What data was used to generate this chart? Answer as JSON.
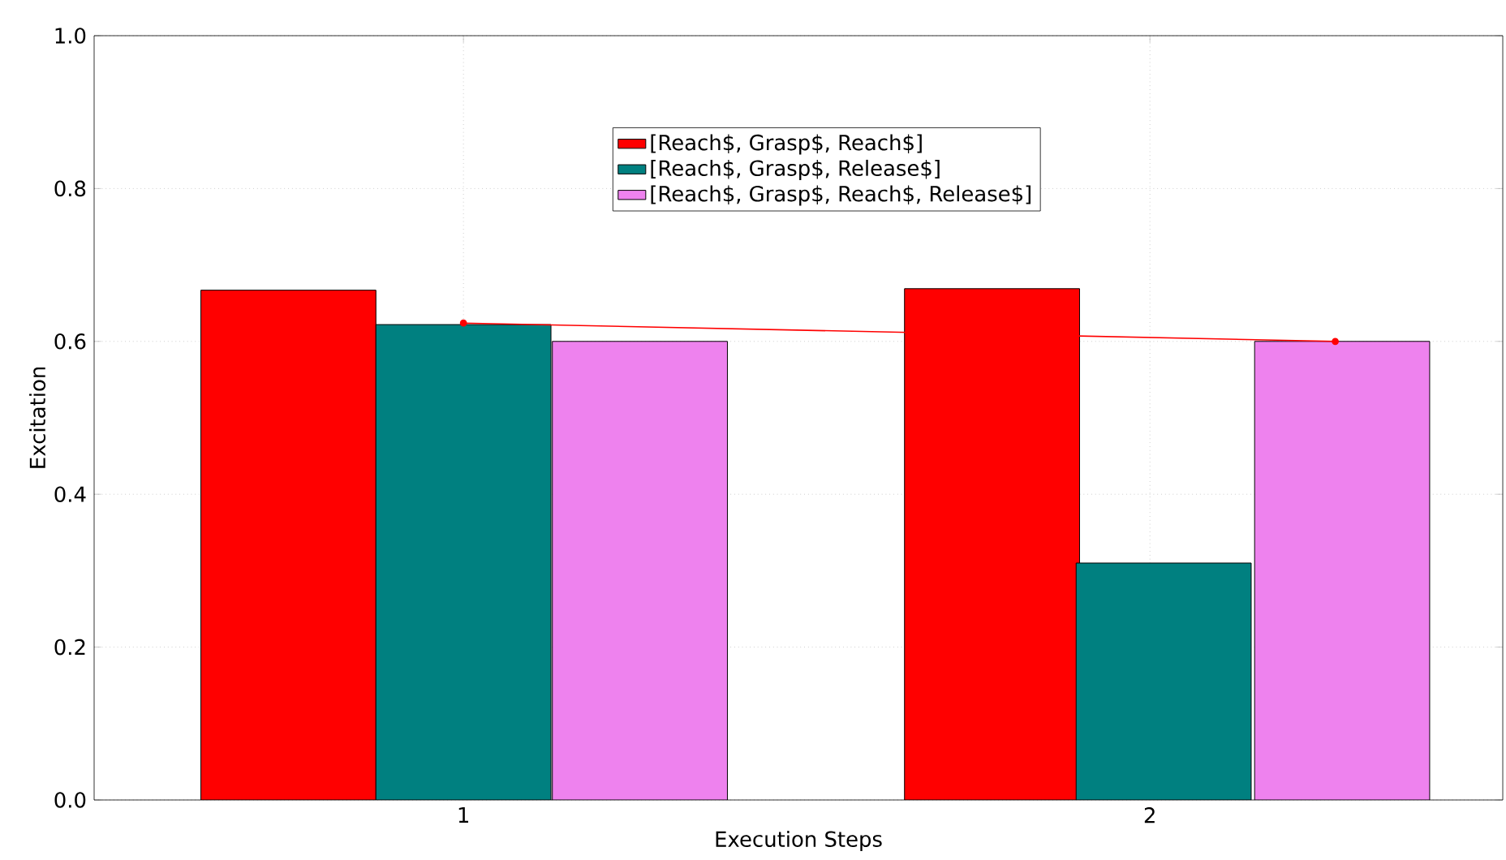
{
  "chart_data": {
    "type": "bar",
    "xlabel": "Execution Steps",
    "ylabel": "Excitation",
    "xlim": [
      0.462,
      2.514
    ],
    "ylim": [
      0,
      1
    ],
    "xticks": [
      1,
      2
    ],
    "yticks": [
      {
        "value": 0,
        "label": "0.0"
      },
      {
        "value": 0.2,
        "label": "0.2"
      },
      {
        "value": 0.4,
        "label": "0.4"
      },
      {
        "value": 0.6,
        "label": "0.6"
      },
      {
        "value": 0.8,
        "label": "0.8"
      },
      {
        "value": 1,
        "label": "1.0"
      }
    ],
    "grid": true,
    "legend": "top",
    "series": [
      {
        "name": "[Reach$, Grasp$, Reach$]",
        "color": "#ff0000",
        "x": [
          0.745,
          1.77
        ],
        "values": [
          0.667,
          0.669
        ]
      },
      {
        "name": "[Reach$, Grasp$, Release$]",
        "color": "#008080",
        "x": [
          1.0,
          2.02
        ],
        "values": [
          0.622,
          0.31
        ]
      },
      {
        "name": "[Reach$, Grasp$, Reach$, Release$]",
        "color": "#ee82ee",
        "x": [
          1.257,
          2.28
        ],
        "values": [
          0.6,
          0.6
        ]
      },
      {
        "type": "line",
        "color": "#ff0000",
        "marker": "circle",
        "x": [
          1.0,
          2.27
        ],
        "values": [
          0.624,
          0.6
        ]
      }
    ]
  }
}
